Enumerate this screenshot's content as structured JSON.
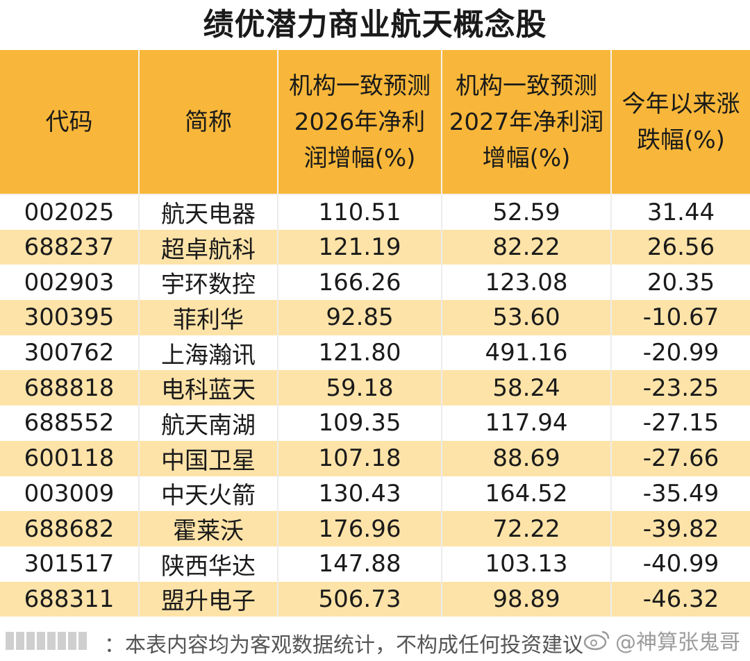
{
  "title": "绩优潜力商业航天概念股",
  "headers": {
    "code": "代码",
    "name": "简称",
    "profit_2026": "机构一致预测2026年净利润增幅(%)",
    "profit_2027": "机构一致预测2027年净利润增幅(%)",
    "ytd": "今年以来涨跌幅(%)"
  },
  "rows": [
    {
      "code": "002025",
      "name": "航天电器",
      "p2026": "110.51",
      "p2027": "52.59",
      "ytd": "31.44"
    },
    {
      "code": "688237",
      "name": "超卓航科",
      "p2026": "121.19",
      "p2027": "82.22",
      "ytd": "26.56"
    },
    {
      "code": "002903",
      "name": "宇环数控",
      "p2026": "166.26",
      "p2027": "123.08",
      "ytd": "20.35"
    },
    {
      "code": "300395",
      "name": "菲利华",
      "p2026": "92.85",
      "p2027": "53.60",
      "ytd": "-10.67"
    },
    {
      "code": "300762",
      "name": "上海瀚讯",
      "p2026": "121.80",
      "p2027": "491.16",
      "ytd": "-20.99"
    },
    {
      "code": "688818",
      "name": "电科蓝天",
      "p2026": "59.18",
      "p2027": "58.24",
      "ytd": "-23.25"
    },
    {
      "code": "688552",
      "name": "航天南湖",
      "p2026": "109.35",
      "p2027": "117.94",
      "ytd": "-27.15"
    },
    {
      "code": "600118",
      "name": "中国卫星",
      "p2026": "107.18",
      "p2027": "88.69",
      "ytd": "-27.66"
    },
    {
      "code": "003009",
      "name": "中天火箭",
      "p2026": "130.43",
      "p2027": "164.52",
      "ytd": "-35.49"
    },
    {
      "code": "688682",
      "name": "霍莱沃",
      "p2026": "176.96",
      "p2027": "72.22",
      "ytd": "-39.82"
    },
    {
      "code": "301517",
      "name": "陕西华达",
      "p2026": "147.88",
      "p2027": "103.13",
      "ytd": "-40.99"
    },
    {
      "code": "688311",
      "name": "盟升电子",
      "p2026": "506.73",
      "p2027": "98.89",
      "ytd": "-46.32"
    }
  ],
  "footer": {
    "note": "：本表内容均为客观数据统计，不构成任何投资建议",
    "watermark": "@神算张鬼哥"
  },
  "colors": {
    "header_bg": "#f8b73a",
    "stripe_bg": "#fde3a8"
  }
}
